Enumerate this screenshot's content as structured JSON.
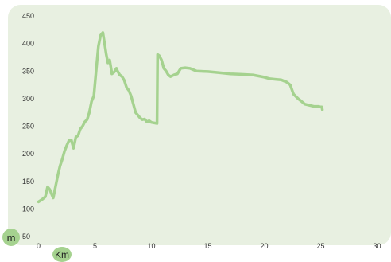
{
  "chart_data": {
    "type": "line",
    "xlabel": "Km",
    "ylabel": "m",
    "xlim": [
      0,
      30
    ],
    "ylim": [
      50,
      450
    ],
    "xticks": [
      0,
      5,
      10,
      15,
      20,
      25,
      30
    ],
    "yticks": [
      50,
      100,
      150,
      200,
      250,
      300,
      350,
      400,
      450
    ],
    "grid": false,
    "line_color": "#a5d28f",
    "background_color": "#e8f0e1",
    "x": [
      0.0,
      0.3,
      0.6,
      0.8,
      1.0,
      1.2,
      1.3,
      1.5,
      1.7,
      1.9,
      2.1,
      2.3,
      2.5,
      2.7,
      2.9,
      3.1,
      3.3,
      3.5,
      3.7,
      3.9,
      4.1,
      4.3,
      4.5,
      4.7,
      4.9,
      5.1,
      5.3,
      5.5,
      5.7,
      5.85,
      6.0,
      6.15,
      6.3,
      6.5,
      6.7,
      6.9,
      7.0,
      7.2,
      7.4,
      7.6,
      7.8,
      8.0,
      8.2,
      8.4,
      8.6,
      8.8,
      9.0,
      9.2,
      9.4,
      9.6,
      9.8,
      10.0,
      10.5,
      10.55,
      10.7,
      10.9,
      11.1,
      11.3,
      11.5,
      11.7,
      12.0,
      12.3,
      12.6,
      13.0,
      13.4,
      14.0,
      15.0,
      16.0,
      17.0,
      18.0,
      19.0,
      19.5,
      20.0,
      20.5,
      21.0,
      21.5,
      22.0,
      22.3,
      22.6,
      23.0,
      23.3,
      23.6,
      24.0,
      24.4,
      24.8,
      25.0,
      25.1,
      25.15
    ],
    "y": [
      113,
      117,
      122,
      140,
      135,
      125,
      120,
      140,
      160,
      178,
      190,
      205,
      215,
      224,
      225,
      210,
      230,
      233,
      245,
      250,
      258,
      262,
      275,
      295,
      305,
      350,
      395,
      415,
      420,
      400,
      380,
      365,
      370,
      345,
      348,
      355,
      350,
      343,
      340,
      333,
      320,
      315,
      305,
      290,
      275,
      270,
      265,
      262,
      263,
      258,
      260,
      257,
      255,
      380,
      378,
      370,
      355,
      350,
      343,
      340,
      343,
      345,
      355,
      356,
      355,
      350,
      349,
      347,
      345,
      344,
      343,
      341,
      339,
      336,
      335,
      334,
      330,
      325,
      308,
      300,
      295,
      290,
      288,
      286,
      286,
      285,
      285,
      280
    ]
  }
}
